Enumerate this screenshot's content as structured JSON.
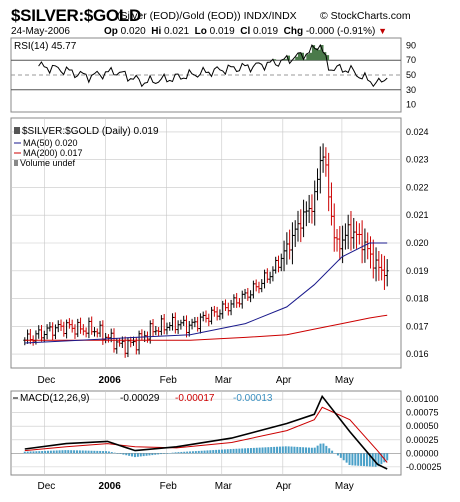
{
  "header": {
    "title": "$SILVER:$GOLD",
    "subtitle": "(Silver (EOD)/Gold (EOD)) INDX/INDX",
    "brand": "© StockCharts.com",
    "date": "24-May-2006",
    "quote": [
      {
        "label": "Op",
        "value": "0.020"
      },
      {
        "label": "Hi",
        "value": "0.021"
      },
      {
        "label": "Lo",
        "value": "0.019"
      },
      {
        "label": "Cl",
        "value": "0.019"
      },
      {
        "label": "Chg",
        "value": "-0.000 (-0.91%)"
      }
    ]
  },
  "colors": {
    "price_up": "#000000",
    "price_down": "#cc0000",
    "ma50": "#1a1a8c",
    "ma200": "#cc0000",
    "rsi_line": "#000000",
    "rsi_fill": "#4a7a4a",
    "macd_line": "#000000",
    "signal_line": "#cc0000",
    "histogram": "#4aa0c8",
    "grid": "#c8c8c8"
  },
  "chart_data": [
    {
      "type": "line",
      "panel": "rsi",
      "legend": "RSI(14) 45.77",
      "y_ticks": [
        10,
        30,
        50,
        70,
        90
      ],
      "ylim": [
        0,
        100
      ],
      "reference_lines": [
        30,
        50,
        70
      ],
      "filled_above": 70,
      "x": [
        "2005-11-28",
        "2005-12-09",
        "2005-12-23",
        "2006-01-06",
        "2006-01-20",
        "2006-02-03",
        "2006-02-17",
        "2006-03-03",
        "2006-03-17",
        "2006-03-31",
        "2006-04-07",
        "2006-04-14",
        "2006-04-20",
        "2006-04-24",
        "2006-05-05",
        "2006-05-12",
        "2006-05-19",
        "2006-05-24"
      ],
      "values": [
        62,
        58,
        48,
        55,
        40,
        45,
        52,
        58,
        62,
        68,
        74,
        80,
        92,
        60,
        57,
        46,
        38,
        45.77
      ]
    },
    {
      "type": "line",
      "panel": "price",
      "legend": [
        "$SILVER:$GOLD (Daily) 0.019",
        "MA(50) 0.020",
        "MA(200) 0.017",
        "Volume undef"
      ],
      "y_ticks": [
        0.016,
        0.017,
        0.018,
        0.019,
        0.02,
        0.021,
        0.022,
        0.023,
        0.024
      ],
      "ylim": [
        0.0155,
        0.0245
      ],
      "x_ticks": [
        "Dec",
        "2006",
        "Feb",
        "Mar",
        "Apr",
        "May"
      ],
      "series": [
        {
          "name": "$SILVER:$GOLD (Daily)",
          "x": [
            "2005-11-21",
            "2005-11-28",
            "2005-12-05",
            "2005-12-12",
            "2005-12-19",
            "2005-12-26",
            "2006-01-02",
            "2006-01-09",
            "2006-01-16",
            "2006-01-23",
            "2006-01-30",
            "2006-02-06",
            "2006-02-13",
            "2006-02-20",
            "2006-02-27",
            "2006-03-06",
            "2006-03-13",
            "2006-03-20",
            "2006-03-27",
            "2006-04-03",
            "2006-04-10",
            "2006-04-17",
            "2006-04-21",
            "2006-04-28",
            "2006-05-05",
            "2006-05-12",
            "2006-05-19",
            "2006-05-24"
          ],
          "values": [
            0.0165,
            0.0167,
            0.0169,
            0.017,
            0.0169,
            0.0169,
            0.0166,
            0.0163,
            0.0164,
            0.0168,
            0.017,
            0.0171,
            0.017,
            0.0173,
            0.0175,
            0.0178,
            0.0181,
            0.0185,
            0.019,
            0.0198,
            0.0208,
            0.0215,
            0.0235,
            0.0198,
            0.0205,
            0.02,
            0.0191,
            0.019
          ]
        },
        {
          "name": "MA(50)",
          "x": [
            "2005-11-21",
            "2005-12-19",
            "2006-01-16",
            "2006-02-13",
            "2006-03-13",
            "2006-04-03",
            "2006-04-17",
            "2006-05-01",
            "2006-05-15",
            "2006-05-24"
          ],
          "values": [
            0.0164,
            0.0165,
            0.0166,
            0.0167,
            0.0171,
            0.0177,
            0.0185,
            0.0195,
            0.02,
            0.02
          ]
        },
        {
          "name": "MA(200)",
          "x": [
            "2005-11-21",
            "2005-12-19",
            "2006-01-16",
            "2006-02-13",
            "2006-03-13",
            "2006-04-03",
            "2006-04-17",
            "2006-05-01",
            "2006-05-15",
            "2006-05-24"
          ],
          "values": [
            0.0165,
            0.0165,
            0.0165,
            0.0165,
            0.0166,
            0.0167,
            0.0169,
            0.0171,
            0.0173,
            0.0174
          ]
        }
      ]
    },
    {
      "type": "line",
      "panel": "macd",
      "legend": {
        "label": "MACD(12,26,9)",
        "macd": "-0.00029",
        "signal": "-0.00017",
        "histogram": "-0.00013"
      },
      "y_ticks": [
        "0.00100",
        "0.00075",
        "0.00050",
        "0.00025",
        "0.00000",
        "-0.00025"
      ],
      "ylim": [
        -0.0004,
        0.00115
      ],
      "x_ticks": [
        "Dec",
        "2006",
        "Feb",
        "Mar",
        "Apr",
        "May"
      ],
      "series": [
        {
          "name": "MACD",
          "x": [
            "2005-11-21",
            "2005-12-12",
            "2006-01-02",
            "2006-01-16",
            "2006-02-06",
            "2006-03-06",
            "2006-04-03",
            "2006-04-17",
            "2006-04-21",
            "2006-05-05",
            "2006-05-19",
            "2006-05-24"
          ],
          "values": [
            8e-05,
            0.00018,
            0.00022,
            5e-05,
            0.00012,
            0.00028,
            0.00055,
            0.00072,
            0.00105,
            0.0004,
            -0.0002,
            -0.00029
          ]
        },
        {
          "name": "Signal",
          "x": [
            "2005-11-21",
            "2005-12-12",
            "2006-01-02",
            "2006-01-16",
            "2006-02-06",
            "2006-03-06",
            "2006-04-03",
            "2006-04-17",
            "2006-04-21",
            "2006-05-05",
            "2006-05-19",
            "2006-05-24"
          ],
          "values": [
            5e-05,
            0.00012,
            0.00018,
            0.00012,
            0.0001,
            0.0002,
            0.00042,
            0.00062,
            0.00085,
            0.00062,
            5e-05,
            -0.00017
          ]
        },
        {
          "name": "Histogram",
          "x": [
            "2005-11-21",
            "2005-12-12",
            "2006-01-02",
            "2006-01-16",
            "2006-02-06",
            "2006-03-06",
            "2006-04-03",
            "2006-04-17",
            "2006-04-21",
            "2006-05-05",
            "2006-05-19",
            "2006-05-24"
          ],
          "values": [
            3e-05,
            6e-05,
            4e-05,
            -7e-05,
            2e-05,
            8e-05,
            0.00013,
            0.0001,
            0.0002,
            -0.00022,
            -0.00025,
            -0.00013
          ]
        }
      ]
    }
  ]
}
